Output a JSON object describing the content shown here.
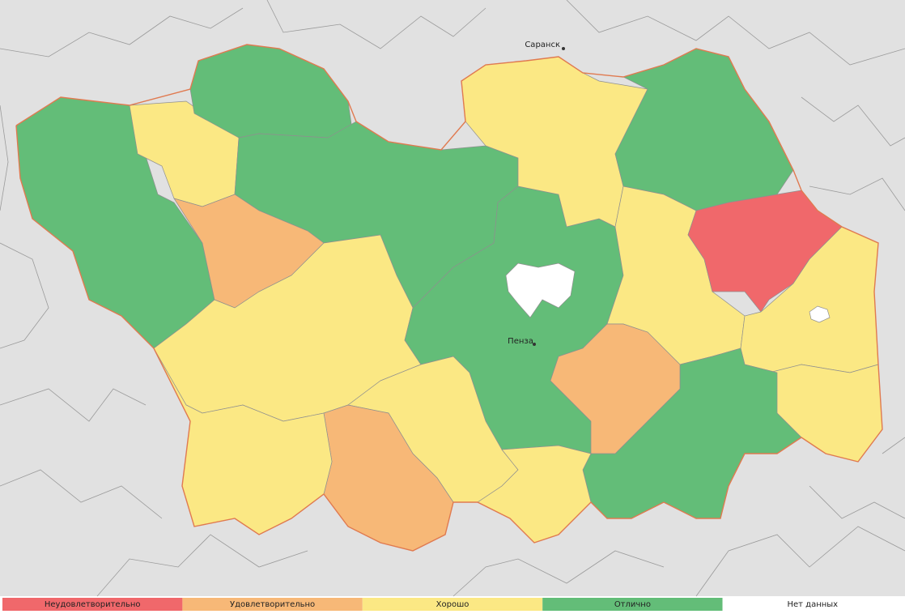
{
  "map": {
    "cities": [
      "Саранск",
      "Пенза"
    ]
  },
  "legend": {
    "items": [
      {
        "label": "Неудовлетворительно",
        "color": "#f0686b"
      },
      {
        "label": "Удовлетворительно",
        "color": "#f7b877"
      },
      {
        "label": "Хорошо",
        "color": "#fbe884"
      },
      {
        "label": "Отлично",
        "color": "#63bd78"
      },
      {
        "label": "Нет данных",
        "color": "#ffffff"
      }
    ]
  }
}
